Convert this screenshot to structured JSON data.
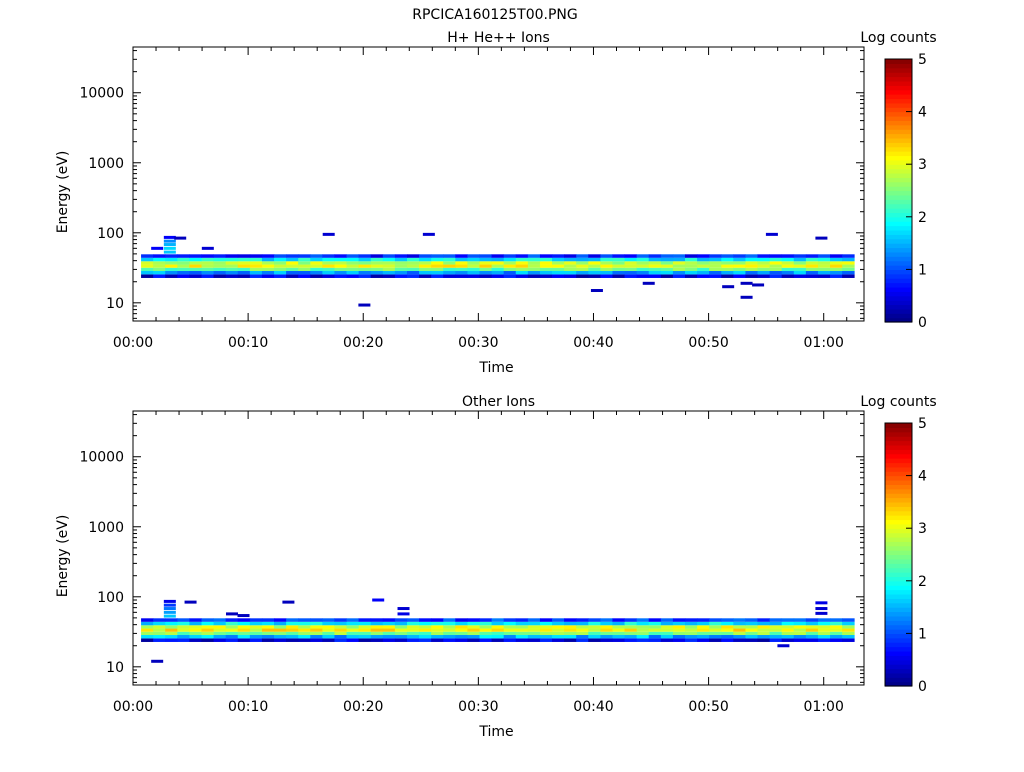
{
  "figure_title": "RPCICA160125T00.PNG",
  "chart_data": [
    {
      "type": "heatmap",
      "title": "H+ He++ Ions",
      "xlabel": "Time",
      "ylabel": "Energy (eV)",
      "x_ticks": [
        "00:00",
        "00:10",
        "00:20",
        "00:30",
        "00:40",
        "00:50",
        "01:00"
      ],
      "x_range_minutes": [
        0,
        63.5
      ],
      "y_scale": "log",
      "y_ticks": [
        10,
        100,
        1000,
        10000
      ],
      "y_tick_labels": [
        "10",
        "100",
        "1000",
        "10000"
      ],
      "y_range": [
        5.5,
        45000
      ],
      "colorbar_label": "Log counts",
      "colorbar_range": [
        0,
        5
      ],
      "colorbar_tick_labels": [
        "0",
        "1",
        "2",
        "3",
        "4",
        "5"
      ],
      "main_band": {
        "minute_range": [
          0.7,
          62.2
        ],
        "energy_levels": [
          {
            "energy": 24,
            "log_counts": 0.5
          },
          {
            "energy": 27,
            "log_counts": 1.4
          },
          {
            "energy": 30,
            "log_counts": 2.4
          },
          {
            "energy": 33.5,
            "log_counts": 3.0
          },
          {
            "energy": 37,
            "log_counts": 2.8
          },
          {
            "energy": 41.5,
            "log_counts": 1.8
          },
          {
            "energy": 46.5,
            "log_counts": 0.8
          }
        ]
      },
      "isolated_points": [
        {
          "minute": 2.1,
          "energy": 60,
          "log_counts": 0.6
        },
        {
          "minute": 3.2,
          "energy": 53,
          "log_counts": 1.6
        },
        {
          "minute": 3.2,
          "energy": 60,
          "log_counts": 1.7
        },
        {
          "minute": 3.2,
          "energy": 68,
          "log_counts": 1.5
        },
        {
          "minute": 3.2,
          "energy": 76,
          "log_counts": 1.3
        },
        {
          "minute": 3.2,
          "energy": 86,
          "log_counts": 0.6
        },
        {
          "minute": 4.1,
          "energy": 84,
          "log_counts": 0.3
        },
        {
          "minute": 6.5,
          "energy": 60,
          "log_counts": 0.4
        },
        {
          "minute": 17.0,
          "energy": 95,
          "log_counts": 0.4
        },
        {
          "minute": 20.1,
          "energy": 9.3,
          "log_counts": 0.3
        },
        {
          "minute": 25.7,
          "energy": 95,
          "log_counts": 0.4
        },
        {
          "minute": 40.3,
          "energy": 15,
          "log_counts": 0.3
        },
        {
          "minute": 44.8,
          "energy": 19,
          "log_counts": 0.3
        },
        {
          "minute": 51.7,
          "energy": 17,
          "log_counts": 0.3
        },
        {
          "minute": 53.3,
          "energy": 12,
          "log_counts": 0.3
        },
        {
          "minute": 53.3,
          "energy": 19,
          "log_counts": 0.3
        },
        {
          "minute": 54.3,
          "energy": 18,
          "log_counts": 0.3
        },
        {
          "minute": 55.5,
          "energy": 95,
          "log_counts": 0.4
        },
        {
          "minute": 59.8,
          "energy": 84,
          "log_counts": 0.3
        }
      ]
    },
    {
      "type": "heatmap",
      "title": "Other Ions",
      "xlabel": "Time",
      "ylabel": "Energy (eV)",
      "x_ticks": [
        "00:00",
        "00:10",
        "00:20",
        "00:30",
        "00:40",
        "00:50",
        "01:00"
      ],
      "x_range_minutes": [
        0,
        63.5
      ],
      "y_scale": "log",
      "y_ticks": [
        10,
        100,
        1000,
        10000
      ],
      "y_tick_labels": [
        "10",
        "100",
        "1000",
        "10000"
      ],
      "y_range": [
        5.5,
        45000
      ],
      "colorbar_label": "Log counts",
      "colorbar_range": [
        0,
        5
      ],
      "colorbar_tick_labels": [
        "0",
        "1",
        "2",
        "3",
        "4",
        "5"
      ],
      "main_band": {
        "minute_range": [
          0.7,
          62.2
        ],
        "energy_levels": [
          {
            "energy": 24,
            "log_counts": 0.5
          },
          {
            "energy": 27,
            "log_counts": 1.5
          },
          {
            "energy": 30,
            "log_counts": 2.5
          },
          {
            "energy": 33.5,
            "log_counts": 3.1
          },
          {
            "energy": 37,
            "log_counts": 2.9
          },
          {
            "energy": 41.5,
            "log_counts": 1.8
          },
          {
            "energy": 46.5,
            "log_counts": 0.9
          }
        ]
      },
      "isolated_points": [
        {
          "minute": 2.1,
          "energy": 12,
          "log_counts": 0.3
        },
        {
          "minute": 3.2,
          "energy": 53,
          "log_counts": 1.6
        },
        {
          "minute": 3.2,
          "energy": 60,
          "log_counts": 1.4
        },
        {
          "minute": 3.2,
          "energy": 68,
          "log_counts": 1.2
        },
        {
          "minute": 3.2,
          "energy": 76,
          "log_counts": 0.9
        },
        {
          "minute": 3.2,
          "energy": 86,
          "log_counts": 0.5
        },
        {
          "minute": 5.0,
          "energy": 84,
          "log_counts": 0.3
        },
        {
          "minute": 8.6,
          "energy": 57,
          "log_counts": 0.3
        },
        {
          "minute": 9.6,
          "energy": 54,
          "log_counts": 0.3
        },
        {
          "minute": 13.5,
          "energy": 84,
          "log_counts": 0.3
        },
        {
          "minute": 21.3,
          "energy": 90,
          "log_counts": 0.6
        },
        {
          "minute": 23.5,
          "energy": 57,
          "log_counts": 0.5
        },
        {
          "minute": 23.5,
          "energy": 68,
          "log_counts": 0.4
        },
        {
          "minute": 56.5,
          "energy": 20,
          "log_counts": 0.4
        },
        {
          "minute": 59.8,
          "energy": 58,
          "log_counts": 0.4
        },
        {
          "minute": 59.8,
          "energy": 68,
          "log_counts": 0.4
        },
        {
          "minute": 59.8,
          "energy": 82,
          "log_counts": 0.5
        }
      ]
    }
  ]
}
